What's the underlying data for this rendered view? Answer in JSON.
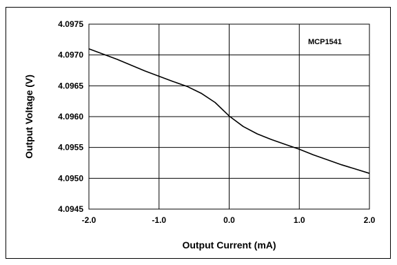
{
  "chart_data": {
    "type": "line",
    "title": "",
    "annotation": "MCP1541",
    "xlabel": "Output Current (mA)",
    "ylabel": "Output Voltage (V)",
    "xlim": [
      -2.0,
      2.0
    ],
    "ylim": [
      4.0945,
      4.0975
    ],
    "x_ticks": [
      -2.0,
      -1.0,
      0.0,
      1.0,
      2.0
    ],
    "x_tick_labels": [
      "-2.0",
      "-1.0",
      "0.0",
      "1.0",
      "2.0"
    ],
    "y_ticks": [
      4.0945,
      4.095,
      4.0955,
      4.096,
      4.0965,
      4.097,
      4.0975
    ],
    "y_tick_labels": [
      "4.0945",
      "4.0950",
      "4.0955",
      "4.0960",
      "4.0965",
      "4.0970",
      "4.0975"
    ],
    "grid": true,
    "series": [
      {
        "color": "#000000",
        "x": [
          -2.0,
          -1.6,
          -1.2,
          -0.8,
          -0.6,
          -0.4,
          -0.2,
          0.0,
          0.2,
          0.4,
          0.6,
          0.8,
          1.0,
          1.2,
          1.4,
          1.6,
          1.8,
          2.0
        ],
        "y": [
          4.0971,
          4.09693,
          4.09674,
          4.09657,
          4.09649,
          4.09638,
          4.09623,
          4.09601,
          4.09584,
          4.09572,
          4.09563,
          4.09555,
          4.09547,
          4.09538,
          4.0953,
          4.09522,
          4.09515,
          4.09508
        ]
      }
    ]
  }
}
